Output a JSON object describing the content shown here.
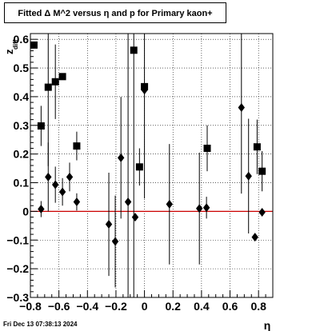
{
  "title": "Fitted Δ M^2 versus η and p for Primary kaon+",
  "timestamp": "Fri Dec 13 07:38:13 2024",
  "chart_data": {
    "type": "scatter",
    "title": "Fitted Δ M^2 versus η and p for Primary kaon+",
    "xlabel": "η",
    "ylabel": "z",
    "ylabel_sub": "diff",
    "xlim": [
      -0.8,
      0.9
    ],
    "ylim": [
      -0.3,
      0.62
    ],
    "xticks": [
      -0.8,
      -0.6,
      -0.4,
      -0.2,
      0,
      0.2,
      0.4,
      0.6,
      0.8
    ],
    "xtick_labels": [
      "−0.8",
      "−0.6",
      "−0.4",
      "−0.2",
      "0",
      "0.2",
      "0.4",
      "0.6",
      "0.8"
    ],
    "yticks": [
      -0.3,
      -0.2,
      -0.1,
      0,
      0.1,
      0.2,
      0.3,
      0.4,
      0.5,
      0.6
    ],
    "ytick_labels": [
      "−0.3",
      "−0.2",
      "−0.1",
      "0",
      "0.1",
      "0.2",
      "0.3",
      "0.4",
      "0.5",
      "0.6"
    ],
    "grid": true,
    "reference_line": {
      "y": 0,
      "color": "#cc0000"
    },
    "series": [
      {
        "marker": "square",
        "points": [
          {
            "x": -0.775,
            "y": 0.58,
            "ylo": 0.58,
            "yhi": 0.58
          },
          {
            "x": -0.725,
            "y": 0.298,
            "ylo": 0.228,
            "yhi": 0.368
          },
          {
            "x": -0.675,
            "y": 0.433,
            "ylo": 0.158,
            "yhi": 0.62
          },
          {
            "x": -0.625,
            "y": 0.452,
            "ylo": 0.322,
            "yhi": 0.582
          },
          {
            "x": -0.575,
            "y": 0.47,
            "ylo": 0.47,
            "yhi": 0.47
          },
          {
            "x": -0.475,
            "y": 0.228,
            "ylo": 0.178,
            "yhi": 0.278
          },
          {
            "x": -0.075,
            "y": 0.562,
            "ylo": -0.3,
            "yhi": 0.62
          },
          {
            "x": -0.035,
            "y": 0.155,
            "ylo": 0.09,
            "yhi": 0.22
          },
          {
            "x": 0.0,
            "y": 0.435,
            "ylo": 0.045,
            "yhi": 0.62
          },
          {
            "x": 0.44,
            "y": 0.22,
            "ylo": 0.14,
            "yhi": 0.3
          },
          {
            "x": 0.79,
            "y": 0.225,
            "ylo": 0.13,
            "yhi": 0.32
          },
          {
            "x": 0.825,
            "y": 0.14,
            "ylo": 0.07,
            "yhi": 0.21
          }
        ]
      },
      {
        "marker": "diamond",
        "points": [
          {
            "x": -0.725,
            "y": 0.008,
            "ylo": -0.02,
            "yhi": 0.036
          },
          {
            "x": -0.675,
            "y": 0.12,
            "ylo": 0.0,
            "yhi": 0.24
          },
          {
            "x": -0.625,
            "y": 0.093,
            "ylo": 0.03,
            "yhi": 0.156
          },
          {
            "x": -0.575,
            "y": 0.068,
            "ylo": 0.02,
            "yhi": 0.116
          },
          {
            "x": -0.525,
            "y": 0.12,
            "ylo": 0.07,
            "yhi": 0.17
          },
          {
            "x": -0.475,
            "y": 0.033,
            "ylo": 0.003,
            "yhi": 0.063
          },
          {
            "x": -0.25,
            "y": -0.045,
            "ylo": -0.225,
            "yhi": 0.135
          },
          {
            "x": -0.205,
            "y": -0.105,
            "ylo": -0.265,
            "yhi": 0.055
          },
          {
            "x": -0.165,
            "y": 0.187,
            "ylo": -0.025,
            "yhi": 0.399
          },
          {
            "x": -0.115,
            "y": 0.033,
            "ylo": -0.3,
            "yhi": 0.62
          },
          {
            "x": -0.065,
            "y": -0.02,
            "ylo": -0.02,
            "yhi": -0.02
          },
          {
            "x": 0.0,
            "y": 0.423,
            "ylo": 0.408,
            "yhi": 0.438
          },
          {
            "x": 0.175,
            "y": 0.025,
            "ylo": -0.185,
            "yhi": 0.235
          },
          {
            "x": 0.385,
            "y": 0.01,
            "ylo": -0.185,
            "yhi": 0.205
          },
          {
            "x": 0.435,
            "y": 0.013,
            "ylo": -0.025,
            "yhi": 0.051
          },
          {
            "x": 0.68,
            "y": 0.362,
            "ylo": 0.062,
            "yhi": 0.62
          },
          {
            "x": 0.73,
            "y": 0.123,
            "ylo": -0.077,
            "yhi": 0.323
          },
          {
            "x": 0.775,
            "y": -0.09,
            "ylo": -0.1,
            "yhi": -0.08
          },
          {
            "x": 0.825,
            "y": -0.003,
            "ylo": -0.013,
            "yhi": 0.007
          }
        ]
      }
    ]
  }
}
